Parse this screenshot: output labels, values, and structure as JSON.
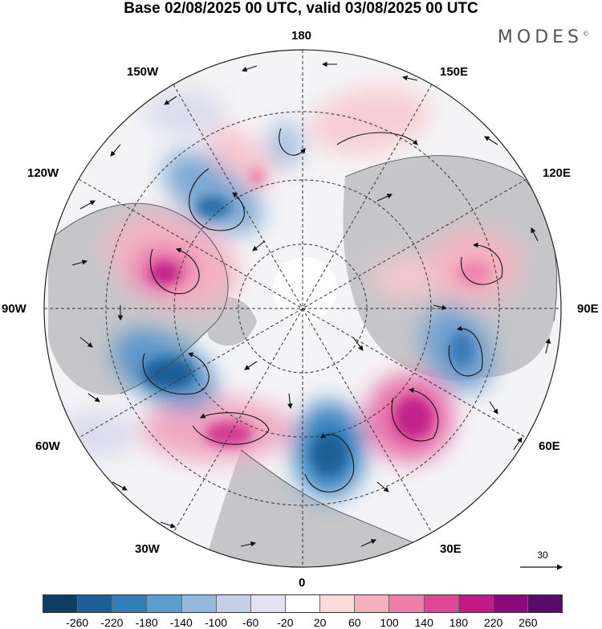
{
  "title": "Base 02/08/2025 00 UTC, valid 03/08/2025 00 UTC",
  "brand": "MODES",
  "brand_mark": "©",
  "longitude_labels": {
    "n180": "180",
    "w150": "150W",
    "e150": "150E",
    "w120": "120W",
    "e120": "120E",
    "w90": "90W",
    "e90": "90E",
    "w60": "60W",
    "e60": "60E",
    "w30": "30W",
    "e30": "30E",
    "s0": "0"
  },
  "reference_vector": {
    "label": "30",
    "icon": "arrow-icon"
  },
  "colorbar": {
    "ticks": [
      "-260",
      "-220",
      "-180",
      "-140",
      "-100",
      "-60",
      "-20",
      "20",
      "60",
      "100",
      "140",
      "180",
      "220",
      "260"
    ],
    "colors": [
      "#0f3d63",
      "#1d5e96",
      "#2f80ba",
      "#5b9ecd",
      "#93b8db",
      "#c3cfe6",
      "#e4e2f1",
      "#ffffff",
      "#fbdada",
      "#f6b0bd",
      "#ef7da7",
      "#df4799",
      "#c11a87",
      "#8c0a7b",
      "#5a0a6b"
    ]
  },
  "colors": {
    "land": "#c9c9c9",
    "border": "#222222"
  }
}
